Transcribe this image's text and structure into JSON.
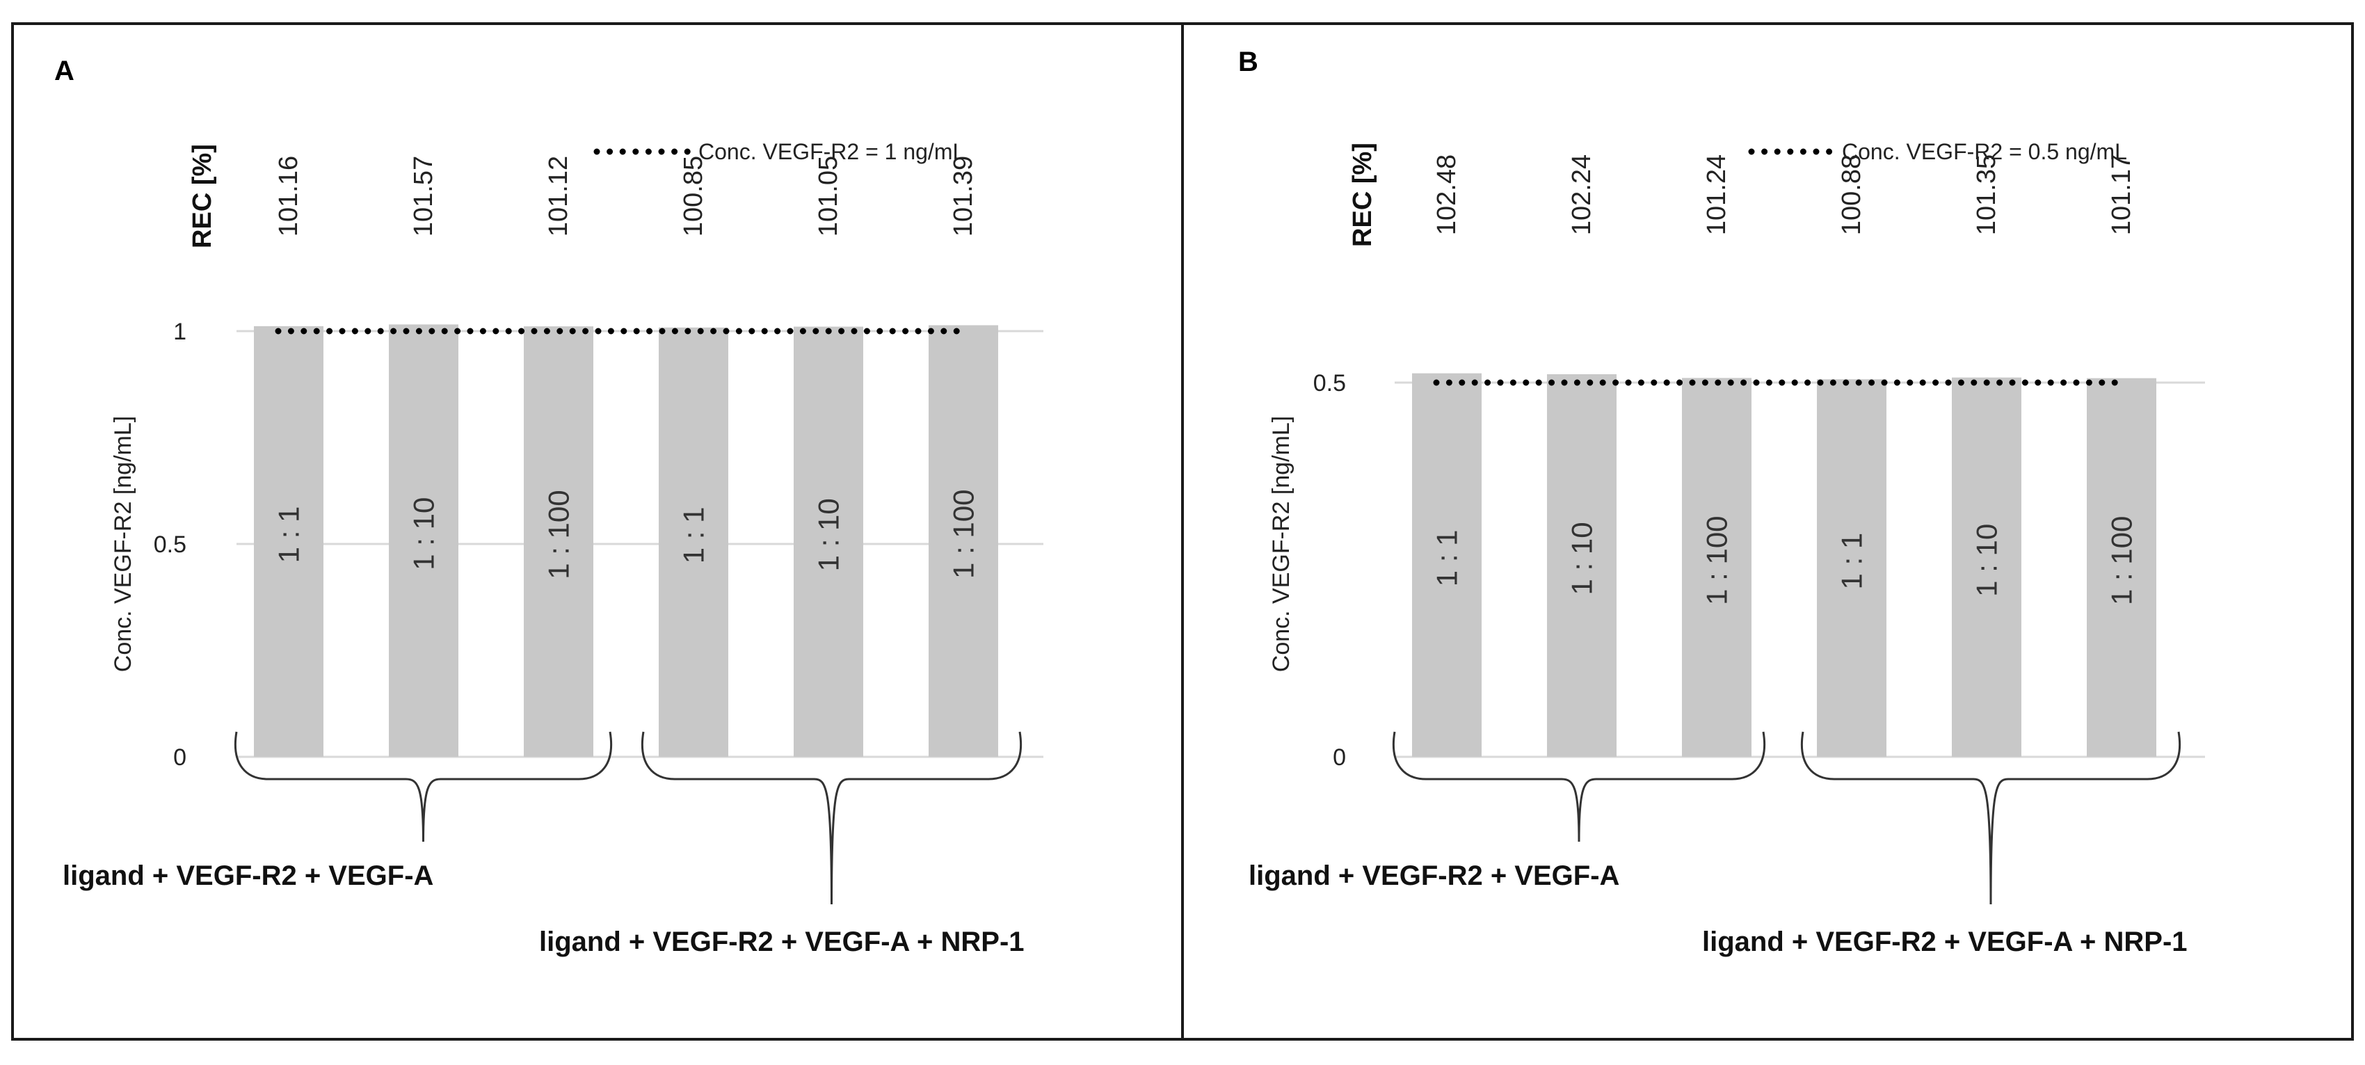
{
  "chart_data": [
    {
      "type": "bar",
      "panel": "A",
      "ylabel": "Conc. VEGF-R2 [ng/mL]",
      "ylim": [
        0,
        1
      ],
      "yticks": [
        "0",
        "0.5",
        "1"
      ],
      "grid": true,
      "legend": "Conc. VEGF-R2 = 1 ng/mL",
      "legend_position": "top-right",
      "reference_line": 1,
      "rec_title": "REC [%]",
      "categories": [
        "1 : 1",
        "1 : 10",
        "1 : 100",
        "1 : 1",
        "1 : 10",
        "1 : 100"
      ],
      "values": [
        1.0116,
        1.0157,
        1.0112,
        1.0085,
        1.0105,
        1.0139
      ],
      "rec_labels": [
        "101.16",
        "101.57",
        "101.12",
        "100.85",
        "101.05",
        "101.39"
      ],
      "groups": [
        "ligand + VEGF-R2 + VEGF-A",
        "ligand + VEGF-R2 + VEGF-A + NRP-1"
      ]
    },
    {
      "type": "bar",
      "panel": "B",
      "ylabel": "Conc. VEGF-R2 [ng/mL]",
      "ylim": [
        0,
        0.5
      ],
      "yticks": [
        "0",
        "0.5"
      ],
      "grid": true,
      "legend": "Conc. VEGF-R2 = 0.5 ng/mL",
      "legend_position": "top-right",
      "reference_line": 0.5,
      "rec_title": "REC [%]",
      "categories": [
        "1 : 1",
        "1 : 10",
        "1 : 100",
        "1 : 1",
        "1 : 10",
        "1 : 100"
      ],
      "values": [
        0.5124,
        0.5112,
        0.5062,
        0.5044,
        0.5068,
        0.5059
      ],
      "rec_labels": [
        "102.48",
        "102.24",
        "101.24",
        "100.88",
        "101.35",
        "101.17"
      ],
      "groups": [
        "ligand + VEGF-R2 + VEGF-A",
        "ligand + VEGF-R2 + VEGF-A + NRP-1"
      ]
    }
  ],
  "colors": {
    "bar": "#c8c8c8",
    "grid": "#d9d9d9",
    "border": "#1a1a1a",
    "dots": "#000000"
  }
}
